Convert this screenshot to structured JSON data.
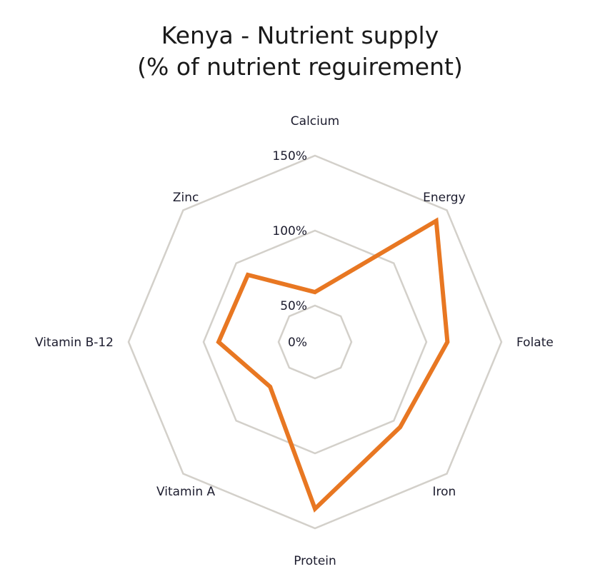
{
  "chart_data": {
    "type": "radar",
    "title": [
      "Kenya - Nutrient supply",
      "(% of nutrient reguirement)"
    ],
    "categories": [
      "Calcium",
      "Energy",
      "Folate",
      "Iron",
      "Protein",
      "Vitamin A",
      "Vitamin B-12",
      "Zinc"
    ],
    "values": [
      59,
      140,
      114,
      106,
      137,
      68,
      90,
      89
    ],
    "ticks": [
      0,
      50,
      100,
      150
    ],
    "tick_labels": [
      "0%",
      "50%",
      "100%",
      "150%"
    ],
    "rlim": [
      0,
      150
    ],
    "grid": true,
    "legend": "none",
    "colors": {
      "series": "#E87722",
      "grid": "#D3D0CA"
    }
  }
}
